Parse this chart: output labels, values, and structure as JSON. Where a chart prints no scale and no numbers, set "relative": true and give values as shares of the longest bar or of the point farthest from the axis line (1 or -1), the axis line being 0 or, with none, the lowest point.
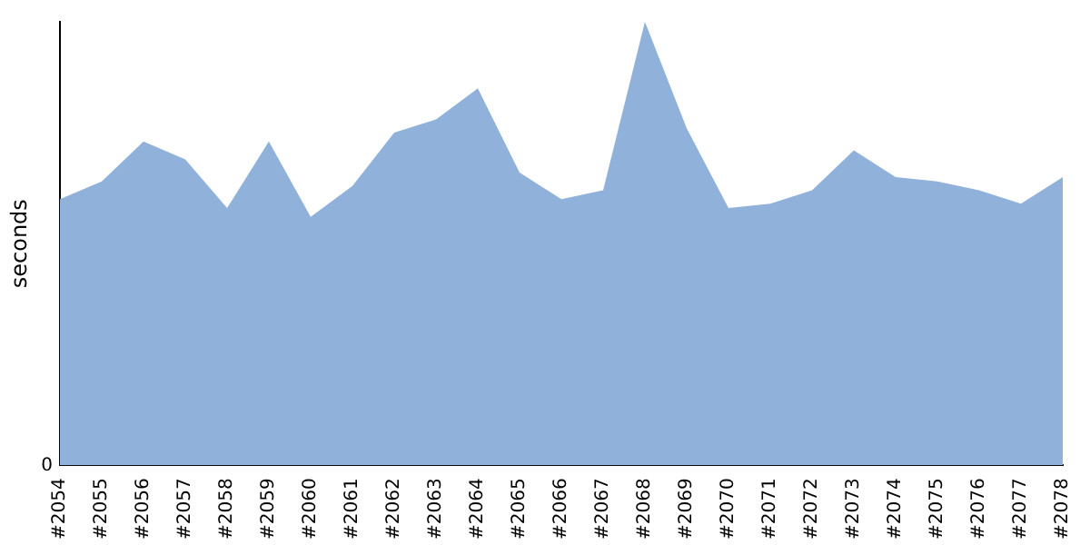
{
  "chart_data": {
    "type": "area",
    "ylabel": "seconds",
    "relative": true,
    "annotations": [
      "0"
    ],
    "categories": [
      "#2054",
      "#2055",
      "#2056",
      "#2057",
      "#2058",
      "#2059",
      "#2060",
      "#2061",
      "#2062",
      "#2063",
      "#2064",
      "#2065",
      "#2066",
      "#2067",
      "#2068",
      "#2069",
      "#2070",
      "#2071",
      "#2072",
      "#2073",
      "#2074",
      "#2075",
      "#2076",
      "#2077",
      "#2078"
    ],
    "series": [
      {
        "color": "#8fb1da",
        "values": [
          0.6,
          0.64,
          0.73,
          0.69,
          0.58,
          0.73,
          0.56,
          0.63,
          0.75,
          0.78,
          0.85,
          0.66,
          0.6,
          0.62,
          1,
          0.76,
          0.58,
          0.59,
          0.62,
          0.71,
          0.65,
          0.64,
          0.62,
          0.59,
          0.65
        ]
      }
    ],
    "grid": false,
    "legend": false
  }
}
